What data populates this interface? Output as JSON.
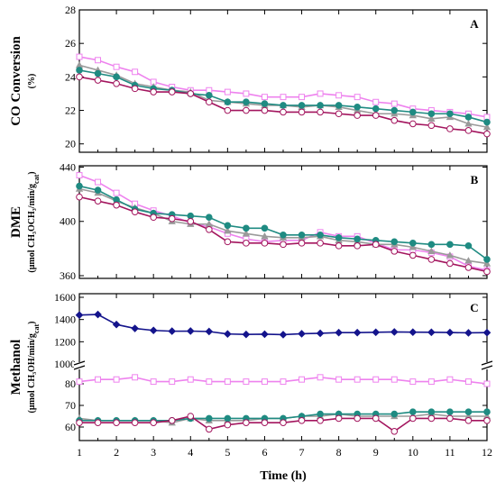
{
  "chart_data": {
    "type": "line",
    "x": [
      1,
      1.5,
      2,
      2.5,
      3,
      3.5,
      4,
      4.5,
      5,
      5.5,
      6,
      6.5,
      7,
      7.5,
      8,
      8.5,
      9,
      9.5,
      10,
      10.5,
      11,
      11.5,
      12
    ],
    "xlabel": "Time (h)",
    "xlim": [
      1,
      12
    ],
    "xticks": [
      "1",
      "2",
      "3",
      "4",
      "5",
      "6",
      "7",
      "8",
      "9",
      "10",
      "11",
      "12"
    ],
    "styles": [
      {
        "color": "#ee82ee",
        "marker": "square",
        "fill": "hollow"
      },
      {
        "color": "#9a9a9a",
        "marker": "triangle",
        "fill": "filled"
      },
      {
        "color": "#1f8b82",
        "marker": "circle",
        "fill": "filled"
      },
      {
        "color": "#a3155e",
        "marker": "circle",
        "fill": "hollow"
      }
    ],
    "panels": [
      {
        "letter": "A",
        "ylabel": "CO Conversion",
        "yunit": "(%)",
        "ylim": [
          19.5,
          28
        ],
        "yticks": [
          "20",
          "22",
          "24",
          "26",
          "28"
        ],
        "series": [
          {
            "style": 0,
            "values": [
              25.2,
              25.0,
              24.6,
              24.3,
              23.7,
              23.4,
              23.2,
              23.2,
              23.1,
              23.0,
              22.8,
              22.8,
              22.8,
              23.0,
              22.9,
              22.8,
              22.5,
              22.4,
              22.1,
              22.0,
              21.9,
              21.8,
              21.6
            ]
          },
          {
            "style": 1,
            "values": [
              24.7,
              24.4,
              24.1,
              23.6,
              23.4,
              23.2,
              23.1,
              22.6,
              22.5,
              22.4,
              22.3,
              22.3,
              22.2,
              22.3,
              22.2,
              22.0,
              21.8,
              21.8,
              21.7,
              21.5,
              21.6,
              21.2,
              21.0
            ]
          },
          {
            "style": 2,
            "values": [
              24.4,
              24.2,
              24.0,
              23.5,
              23.3,
              23.2,
              23.0,
              22.9,
              22.5,
              22.5,
              22.4,
              22.3,
              22.3,
              22.3,
              22.3,
              22.2,
              22.1,
              22.0,
              21.9,
              21.8,
              21.8,
              21.6,
              21.3
            ]
          },
          {
            "style": 3,
            "values": [
              24.0,
              23.8,
              23.6,
              23.3,
              23.1,
              23.1,
              23.0,
              22.5,
              22.0,
              22.0,
              22.0,
              21.9,
              21.9,
              21.9,
              21.8,
              21.7,
              21.7,
              21.4,
              21.2,
              21.1,
              20.9,
              20.8,
              20.6
            ]
          }
        ]
      },
      {
        "letter": "B",
        "ylabel": "DME",
        "yunit": "(μmol CH₃OCH₃/min/g<sub>cat</sub>)",
        "ylim": [
          358,
          441
        ],
        "yticks": [
          "360",
          "400",
          "440"
        ],
        "series": [
          {
            "style": 0,
            "values": [
              434,
              429,
              421,
              413,
              408,
              404,
              399,
              396,
              391,
              387,
              385,
              386,
              386,
              392,
              389,
              389,
              384,
              379,
              379,
              377,
              374,
              367,
              364
            ]
          },
          {
            "style": 1,
            "values": [
              424,
              421,
              415,
              410,
              406,
              400,
              398,
              398,
              393,
              391,
              389,
              388,
              388,
              389,
              386,
              385,
              383,
              383,
              381,
              378,
              375,
              371,
              369
            ]
          },
          {
            "style": 2,
            "values": [
              426,
              423,
              416,
              409,
              406,
              405,
              404,
              403,
              397,
              395,
              395,
              390,
              390,
              390,
              388,
              387,
              386,
              385,
              384,
              383,
              383,
              382,
              372
            ]
          },
          {
            "style": 3,
            "values": [
              418,
              415,
              412,
              407,
              403,
              402,
              400,
              394,
              385,
              384,
              384,
              383,
              384,
              384,
              382,
              382,
              383,
              378,
              375,
              372,
              369,
              366,
              363
            ]
          }
        ]
      },
      {
        "letter": "C",
        "ylabel": "Methanol",
        "yunit": "(μmol CH₃OH/min/g<sub>cat</sub>)",
        "ylim": [
          1000,
          1600
        ],
        "yticks": [
          "1000",
          "1200",
          "1400",
          "1600"
        ],
        "lower_ylim": [
          55,
          90
        ],
        "lower_yticks": [
          "60",
          "70",
          "80"
        ],
        "series": [
          {
            "style": 4,
            "color": "#14148c",
            "marker": "diamond",
            "values": [
              1440,
              1445,
              1355,
              1320,
              1302,
              1295,
              1296,
              1292,
              1270,
              1266,
              1268,
              1264,
              1272,
              1276,
              1282,
              1282,
              1285,
              1288,
              1286,
              1285,
              1283,
              1280,
              1282
            ]
          },
          {
            "style": 0,
            "values": [
              81,
              82,
              82,
              83,
              81,
              81,
              82,
              81,
              81,
              81,
              81,
              81,
              82,
              83,
              82,
              82,
              82,
              82,
              81,
              81,
              82,
              81,
              80
            ]
          },
          {
            "style": 1,
            "values": [
              64,
              63,
              63,
              63,
              63,
              62,
              64,
              63,
              63,
              63,
              64,
              64,
              65,
              65,
              66,
              65,
              65,
              65,
              65,
              66,
              65,
              65,
              65
            ]
          },
          {
            "style": 2,
            "values": [
              63,
              63,
              63,
              63,
              63,
              63,
              64,
              64,
              64,
              64,
              64,
              64,
              65,
              66,
              66,
              66,
              66,
              66,
              67,
              67,
              67,
              67,
              67
            ]
          },
          {
            "style": 3,
            "values": [
              62,
              62,
              62,
              62,
              62,
              63,
              65,
              59,
              61,
              62,
              62,
              62,
              63,
              63,
              64,
              64,
              64,
              58,
              64,
              64,
              64,
              63,
              63
            ]
          }
        ]
      }
    ]
  }
}
